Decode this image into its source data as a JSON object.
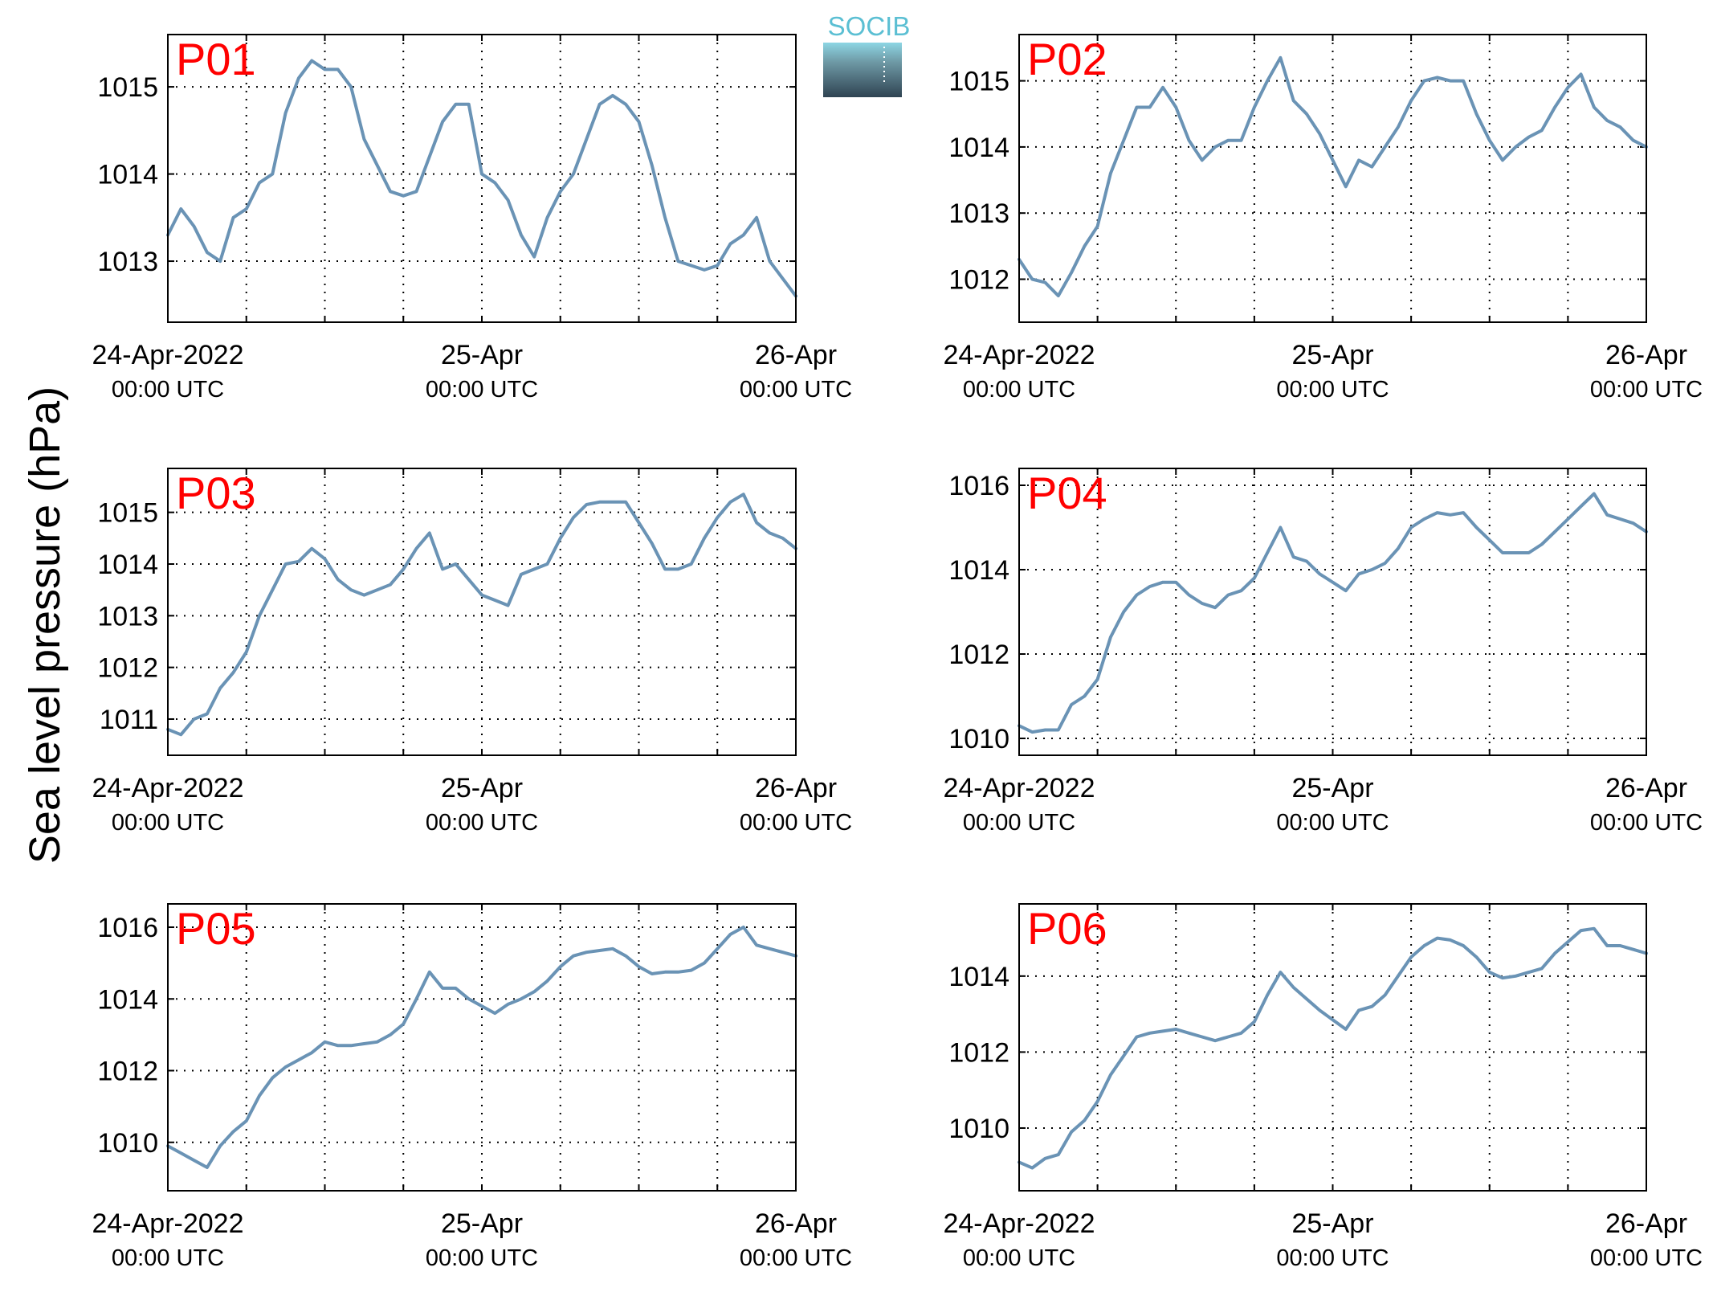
{
  "figure": {
    "ylabel": "Sea level pressure (hPa)",
    "logo_text": "SOCIB",
    "line_color": "#6a93b5",
    "panel_label_color": "#ff0000"
  },
  "chart_data": [
    {
      "type": "line",
      "title": "P01",
      "x_tick_labels": [
        [
          "24-Apr-2022",
          "00:00 UTC"
        ],
        [
          "25-Apr",
          "00:00 UTC"
        ],
        [
          "26-Apr",
          "00:00 UTC"
        ]
      ],
      "y_ticks": [
        1013,
        1014,
        1015
      ],
      "ylim": [
        1012.3,
        1015.6
      ],
      "x": [
        0,
        1,
        2,
        3,
        4,
        5,
        6,
        7,
        8,
        9,
        10,
        11,
        12,
        13,
        14,
        15,
        16,
        17,
        18,
        19,
        20,
        21,
        22,
        23,
        24,
        25,
        26,
        27,
        28,
        29,
        30,
        31,
        32,
        33,
        34,
        35,
        36,
        37,
        38,
        39,
        40,
        41,
        42,
        43,
        44,
        45,
        46,
        47,
        48
      ],
      "values": [
        1013.3,
        1013.6,
        1013.4,
        1013.1,
        1013.0,
        1013.5,
        1013.6,
        1013.9,
        1014.0,
        1014.7,
        1015.1,
        1015.3,
        1015.2,
        1015.2,
        1015.0,
        1014.4,
        1014.1,
        1013.8,
        1013.75,
        1013.8,
        1014.2,
        1014.6,
        1014.8,
        1014.8,
        1014.0,
        1013.9,
        1013.7,
        1013.3,
        1013.05,
        1013.5,
        1013.8,
        1014.0,
        1014.4,
        1014.8,
        1014.9,
        1014.8,
        1014.6,
        1014.1,
        1013.5,
        1013.0,
        1012.95,
        1012.9,
        1012.95,
        1013.2,
        1013.3,
        1013.5,
        1013.0,
        1012.8,
        1012.6
      ]
    },
    {
      "type": "line",
      "title": "P02",
      "x_tick_labels": [
        [
          "24-Apr-2022",
          "00:00 UTC"
        ],
        [
          "25-Apr",
          "00:00 UTC"
        ],
        [
          "26-Apr",
          "00:00 UTC"
        ]
      ],
      "y_ticks": [
        1012,
        1013,
        1014,
        1015
      ],
      "ylim": [
        1011.35,
        1015.7
      ],
      "x": [
        0,
        1,
        2,
        3,
        4,
        5,
        6,
        7,
        8,
        9,
        10,
        11,
        12,
        13,
        14,
        15,
        16,
        17,
        18,
        19,
        20,
        21,
        22,
        23,
        24,
        25,
        26,
        27,
        28,
        29,
        30,
        31,
        32,
        33,
        34,
        35,
        36,
        37,
        38,
        39,
        40,
        41,
        42,
        43,
        44,
        45,
        46,
        47,
        48
      ],
      "values": [
        1012.3,
        1012.0,
        1011.95,
        1011.75,
        1012.1,
        1012.5,
        1012.8,
        1013.6,
        1014.1,
        1014.6,
        1014.6,
        1014.9,
        1014.6,
        1014.1,
        1013.8,
        1014.0,
        1014.1,
        1014.1,
        1014.6,
        1015.0,
        1015.35,
        1014.7,
        1014.5,
        1014.2,
        1013.8,
        1013.4,
        1013.8,
        1013.7,
        1014.0,
        1014.3,
        1014.7,
        1015.0,
        1015.05,
        1015.0,
        1015.0,
        1014.5,
        1014.1,
        1013.8,
        1014.0,
        1014.15,
        1014.25,
        1014.6,
        1014.9,
        1015.1,
        1014.6,
        1014.4,
        1014.3,
        1014.1,
        1014.0
      ]
    },
    {
      "type": "line",
      "title": "P03",
      "x_tick_labels": [
        [
          "24-Apr-2022",
          "00:00 UTC"
        ],
        [
          "25-Apr",
          "00:00 UTC"
        ],
        [
          "26-Apr",
          "00:00 UTC"
        ]
      ],
      "y_ticks": [
        1011,
        1012,
        1013,
        1014,
        1015
      ],
      "ylim": [
        1010.3,
        1015.85
      ],
      "x": [
        0,
        1,
        2,
        3,
        4,
        5,
        6,
        7,
        8,
        9,
        10,
        11,
        12,
        13,
        14,
        15,
        16,
        17,
        18,
        19,
        20,
        21,
        22,
        23,
        24,
        25,
        26,
        27,
        28,
        29,
        30,
        31,
        32,
        33,
        34,
        35,
        36,
        37,
        38,
        39,
        40,
        41,
        42,
        43,
        44,
        45,
        46,
        47,
        48
      ],
      "values": [
        1010.8,
        1010.7,
        1011.0,
        1011.1,
        1011.6,
        1011.9,
        1012.3,
        1013.0,
        1013.5,
        1014.0,
        1014.05,
        1014.3,
        1014.1,
        1013.7,
        1013.5,
        1013.4,
        1013.5,
        1013.6,
        1013.9,
        1014.3,
        1014.6,
        1013.9,
        1014.0,
        1013.7,
        1013.4,
        1013.3,
        1013.2,
        1013.8,
        1013.9,
        1014.0,
        1014.5,
        1014.9,
        1015.15,
        1015.2,
        1015.2,
        1015.2,
        1014.8,
        1014.4,
        1013.9,
        1013.9,
        1014.0,
        1014.5,
        1014.9,
        1015.2,
        1015.35,
        1014.8,
        1014.6,
        1014.5,
        1014.3
      ]
    },
    {
      "type": "line",
      "title": "P04",
      "x_tick_labels": [
        [
          "24-Apr-2022",
          "00:00 UTC"
        ],
        [
          "25-Apr",
          "00:00 UTC"
        ],
        [
          "26-Apr",
          "00:00 UTC"
        ]
      ],
      "y_ticks": [
        1010,
        1012,
        1014,
        1016
      ],
      "ylim": [
        1009.6,
        1016.4
      ],
      "x": [
        0,
        1,
        2,
        3,
        4,
        5,
        6,
        7,
        8,
        9,
        10,
        11,
        12,
        13,
        14,
        15,
        16,
        17,
        18,
        19,
        20,
        21,
        22,
        23,
        24,
        25,
        26,
        27,
        28,
        29,
        30,
        31,
        32,
        33,
        34,
        35,
        36,
        37,
        38,
        39,
        40,
        41,
        42,
        43,
        44,
        45,
        46,
        47,
        48
      ],
      "values": [
        1010.3,
        1010.15,
        1010.2,
        1010.2,
        1010.8,
        1011.0,
        1011.4,
        1012.4,
        1013.0,
        1013.4,
        1013.6,
        1013.7,
        1013.7,
        1013.4,
        1013.2,
        1013.1,
        1013.4,
        1013.5,
        1013.8,
        1014.4,
        1015.0,
        1014.3,
        1014.2,
        1013.9,
        1013.7,
        1013.5,
        1013.9,
        1014.0,
        1014.15,
        1014.5,
        1015.0,
        1015.2,
        1015.35,
        1015.3,
        1015.35,
        1015.0,
        1014.7,
        1014.4,
        1014.4,
        1014.4,
        1014.6,
        1014.9,
        1015.2,
        1015.5,
        1015.8,
        1015.3,
        1015.2,
        1015.1,
        1014.9
      ]
    },
    {
      "type": "line",
      "title": "P05",
      "x_tick_labels": [
        [
          "24-Apr-2022",
          "00:00 UTC"
        ],
        [
          "25-Apr",
          "00:00 UTC"
        ],
        [
          "26-Apr",
          "00:00 UTC"
        ]
      ],
      "y_ticks": [
        1010,
        1012,
        1014,
        1016
      ],
      "ylim": [
        1008.65,
        1016.65
      ],
      "x": [
        0,
        1,
        2,
        3,
        4,
        5,
        6,
        7,
        8,
        9,
        10,
        11,
        12,
        13,
        14,
        15,
        16,
        17,
        18,
        19,
        20,
        21,
        22,
        23,
        24,
        25,
        26,
        27,
        28,
        29,
        30,
        31,
        32,
        33,
        34,
        35,
        36,
        37,
        38,
        39,
        40,
        41,
        42,
        43,
        44,
        45,
        46,
        47,
        48
      ],
      "values": [
        1009.9,
        1009.7,
        1009.5,
        1009.3,
        1009.9,
        1010.3,
        1010.6,
        1011.3,
        1011.8,
        1012.1,
        1012.3,
        1012.5,
        1012.8,
        1012.7,
        1012.7,
        1012.75,
        1012.8,
        1013.0,
        1013.3,
        1014.0,
        1014.75,
        1014.3,
        1014.3,
        1014.0,
        1013.8,
        1013.6,
        1013.85,
        1014.0,
        1014.2,
        1014.5,
        1014.9,
        1015.2,
        1015.3,
        1015.35,
        1015.4,
        1015.2,
        1014.9,
        1014.7,
        1014.75,
        1014.75,
        1014.8,
        1015.0,
        1015.4,
        1015.8,
        1016.0,
        1015.5,
        1015.4,
        1015.3,
        1015.2
      ]
    },
    {
      "type": "line",
      "title": "P06",
      "x_tick_labels": [
        [
          "24-Apr-2022",
          "00:00 UTC"
        ],
        [
          "25-Apr",
          "00:00 UTC"
        ],
        [
          "26-Apr",
          "00:00 UTC"
        ]
      ],
      "y_ticks": [
        1010,
        1012,
        1014
      ],
      "ylim": [
        1008.35,
        1015.9
      ],
      "x": [
        0,
        1,
        2,
        3,
        4,
        5,
        6,
        7,
        8,
        9,
        10,
        11,
        12,
        13,
        14,
        15,
        16,
        17,
        18,
        19,
        20,
        21,
        22,
        23,
        24,
        25,
        26,
        27,
        28,
        29,
        30,
        31,
        32,
        33,
        34,
        35,
        36,
        37,
        38,
        39,
        40,
        41,
        42,
        43,
        44,
        45,
        46,
        47,
        48
      ],
      "values": [
        1009.1,
        1008.95,
        1009.2,
        1009.3,
        1009.9,
        1010.2,
        1010.7,
        1011.4,
        1011.9,
        1012.4,
        1012.5,
        1012.55,
        1012.6,
        1012.5,
        1012.4,
        1012.3,
        1012.4,
        1012.5,
        1012.8,
        1013.5,
        1014.1,
        1013.7,
        1013.4,
        1013.1,
        1012.85,
        1012.6,
        1013.1,
        1013.2,
        1013.5,
        1014.0,
        1014.5,
        1014.8,
        1015.0,
        1014.95,
        1014.8,
        1014.5,
        1014.1,
        1013.95,
        1014.0,
        1014.1,
        1014.2,
        1014.6,
        1014.9,
        1015.2,
        1015.25,
        1014.8,
        1014.8,
        1014.7,
        1014.6
      ]
    }
  ]
}
